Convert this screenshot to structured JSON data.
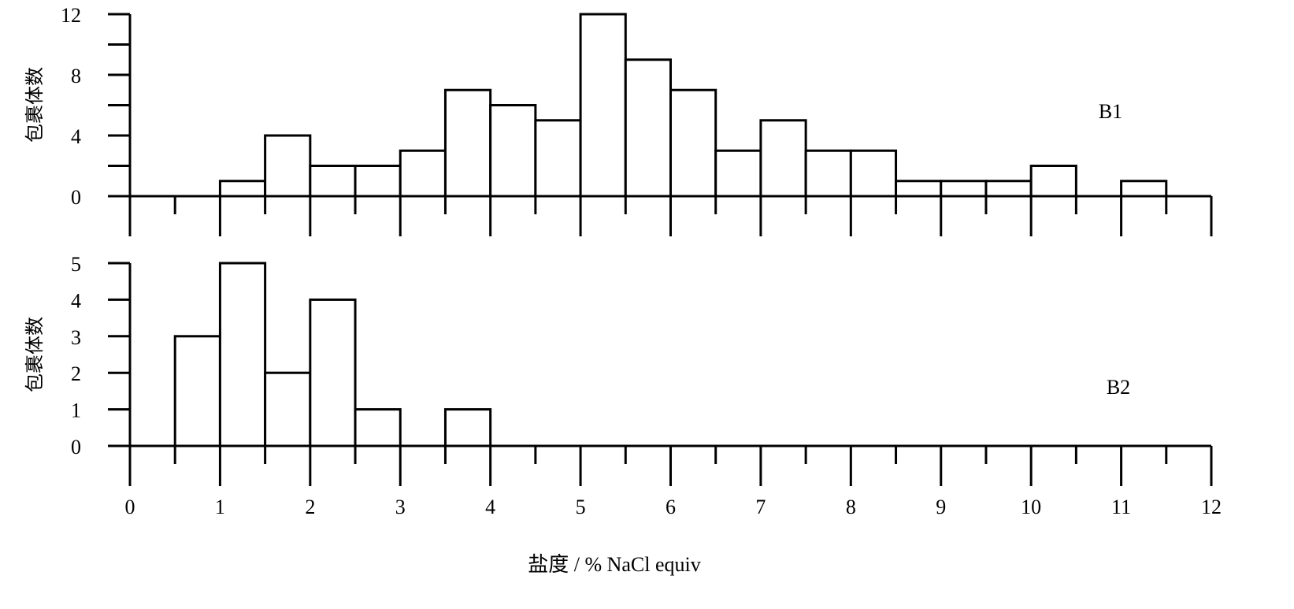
{
  "chart_data": [
    {
      "type": "bar",
      "panel_label": "B1",
      "ylabel": "包裹体数",
      "ylim": [
        0,
        12
      ],
      "yticks": [
        0,
        4,
        8,
        12
      ],
      "bin_width": 0.5,
      "bins": [
        {
          "x0": 1.0,
          "value": 1
        },
        {
          "x0": 1.5,
          "value": 4
        },
        {
          "x0": 2.0,
          "value": 2
        },
        {
          "x0": 2.5,
          "value": 2
        },
        {
          "x0": 3.0,
          "value": 3
        },
        {
          "x0": 3.5,
          "value": 7
        },
        {
          "x0": 4.0,
          "value": 6
        },
        {
          "x0": 4.5,
          "value": 5
        },
        {
          "x0": 5.0,
          "value": 12
        },
        {
          "x0": 5.5,
          "value": 9
        },
        {
          "x0": 6.0,
          "value": 7
        },
        {
          "x0": 6.5,
          "value": 3
        },
        {
          "x0": 7.0,
          "value": 5
        },
        {
          "x0": 7.5,
          "value": 3
        },
        {
          "x0": 8.0,
          "value": 3
        },
        {
          "x0": 8.5,
          "value": 1
        },
        {
          "x0": 9.0,
          "value": 1
        },
        {
          "x0": 9.5,
          "value": 1
        },
        {
          "x0": 10.0,
          "value": 2
        },
        {
          "x0": 11.0,
          "value": 1
        }
      ]
    },
    {
      "type": "bar",
      "panel_label": "B2",
      "ylabel": "包裹体数",
      "ylim": [
        0,
        5
      ],
      "yticks": [
        0,
        1,
        2,
        3,
        4,
        5
      ],
      "bin_width": 0.5,
      "bins": [
        {
          "x0": 0.5,
          "value": 3
        },
        {
          "x0": 1.0,
          "value": 5
        },
        {
          "x0": 1.5,
          "value": 2
        },
        {
          "x0": 2.0,
          "value": 4
        },
        {
          "x0": 2.5,
          "value": 1
        },
        {
          "x0": 3.5,
          "value": 1
        }
      ]
    }
  ],
  "x_axis": {
    "xlim": [
      0,
      12
    ],
    "ticks": [
      0,
      1,
      2,
      3,
      4,
      5,
      6,
      7,
      8,
      9,
      10,
      11,
      12
    ],
    "label": "盐度 / % NaCl  equiv"
  }
}
